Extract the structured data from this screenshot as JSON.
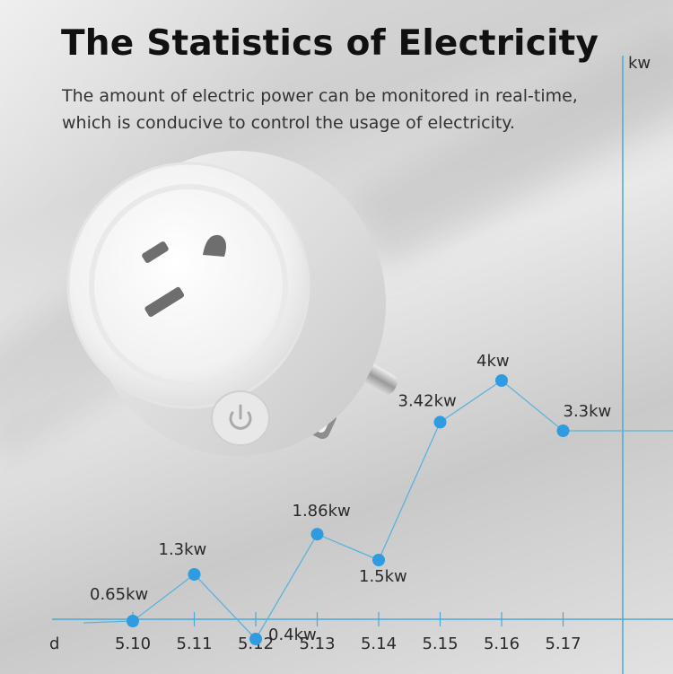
{
  "title": "The Statistics of Electricity",
  "subtitle": "The amount of electric power can be monitored in real-time, which is conducive to control the usage of electricity.",
  "chart_data": {
    "type": "line",
    "categories": [
      "5.10",
      "5.11",
      "5.12",
      "5.13",
      "5.14",
      "5.15",
      "5.16",
      "5.17"
    ],
    "values": [
      0.65,
      1.3,
      0.4,
      1.86,
      1.5,
      3.42,
      4,
      3.3
    ],
    "point_labels": [
      "0.65kw",
      "1.3kw",
      "0.4kw",
      "1.86kw",
      "1.5kw",
      "3.42kw",
      "4kw",
      "3.3kw"
    ],
    "xlabel": "d",
    "ylabel": "kw",
    "grid": false,
    "colors": {
      "line": "#5bb3dc",
      "point": "#2f9be0",
      "axis": "#4aa8d6"
    }
  },
  "product": {
    "power_icon": "power-icon"
  }
}
